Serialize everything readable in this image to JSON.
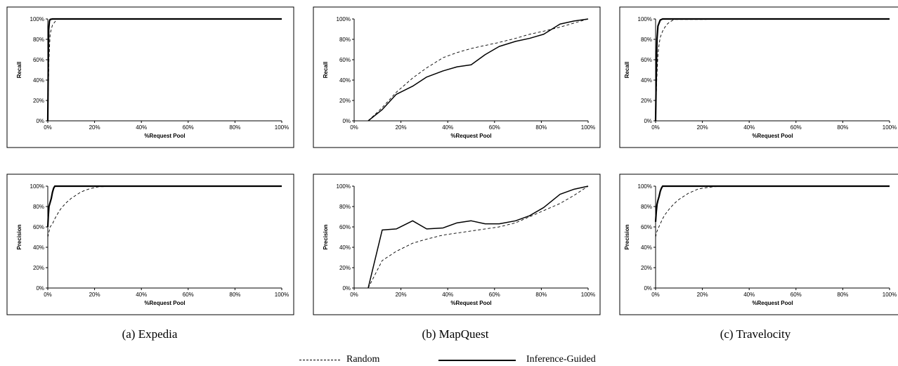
{
  "captions": [
    "(a) Expedia",
    "(b) MapQuest",
    "(c) Travelocity"
  ],
  "legend": {
    "random": "Random",
    "guided": "Inference-Guided"
  },
  "chart_data": [
    {
      "type": "line",
      "panel": "a-recall",
      "xlabel": "%Request Pool",
      "ylabel": "Recall",
      "xticks": [
        "0%",
        "20%",
        "40%",
        "60%",
        "80%",
        "100%"
      ],
      "yticks": [
        "0%",
        "20%",
        "40%",
        "60%",
        "80%",
        "100%"
      ],
      "xlim": [
        0,
        100
      ],
      "ylim": [
        0,
        100
      ],
      "series": [
        {
          "name": "Random",
          "style": "dashed",
          "x": [
            0,
            0.5,
            1,
            1.5,
            2,
            3,
            4
          ],
          "y": [
            0,
            60,
            85,
            90,
            94,
            97,
            100
          ]
        },
        {
          "name": "Inference-Guided",
          "style": "solid",
          "x": [
            0,
            0.2,
            0.4,
            0.7,
            1,
            2,
            40,
            100
          ],
          "y": [
            0,
            55,
            90,
            98,
            99.5,
            100,
            100,
            100
          ]
        }
      ]
    },
    {
      "type": "line",
      "panel": "b-recall",
      "xlabel": "%Request Pool",
      "ylabel": "Recall",
      "xticks": [
        "0%",
        "20%",
        "40%",
        "60%",
        "80%",
        "100%"
      ],
      "yticks": [
        "0%",
        "20%",
        "40%",
        "60%",
        "80%",
        "100%"
      ],
      "xlim": [
        0,
        100
      ],
      "ylim": [
        0,
        100
      ],
      "series": [
        {
          "name": "Random",
          "style": "dashed",
          "x": [
            6,
            12,
            18,
            25,
            31,
            38,
            44,
            50,
            56,
            62,
            69,
            75,
            81,
            88,
            94,
            100
          ],
          "y": [
            0,
            13,
            28,
            42,
            52,
            62,
            67,
            71,
            74,
            77,
            81,
            85,
            88,
            92,
            96,
            100
          ]
        },
        {
          "name": "Inference-Guided",
          "style": "solid",
          "x": [
            6,
            12,
            18,
            25,
            31,
            38,
            44,
            50,
            56,
            62,
            69,
            75,
            81,
            88,
            94,
            100
          ],
          "y": [
            0,
            11,
            26,
            34,
            43,
            49,
            53,
            55,
            65,
            73,
            78,
            81,
            85,
            95,
            98,
            100
          ]
        }
      ]
    },
    {
      "type": "line",
      "panel": "c-recall",
      "xlabel": "%Request Pool",
      "ylabel": "Recall",
      "xticks": [
        "0%",
        "20%",
        "40%",
        "60%",
        "80%",
        "100%"
      ],
      "yticks": [
        "0%",
        "20%",
        "40%",
        "60%",
        "80%",
        "100%"
      ],
      "xlim": [
        0,
        100
      ],
      "ylim": [
        0,
        100
      ],
      "series": [
        {
          "name": "Random",
          "style": "dashed",
          "x": [
            0,
            0.5,
            1,
            1.5,
            2,
            3,
            4,
            5,
            6,
            8,
            100
          ],
          "y": [
            0,
            40,
            65,
            75,
            82,
            88,
            92,
            95,
            97,
            99.5,
            100
          ]
        },
        {
          "name": "Inference-Guided",
          "style": "solid",
          "x": [
            0,
            0.3,
            0.6,
            1,
            2,
            3,
            100
          ],
          "y": [
            0,
            45,
            80,
            93,
            99,
            100,
            100
          ]
        }
      ]
    },
    {
      "type": "line",
      "panel": "a-precision",
      "xlabel": "%Request Pool",
      "ylabel": "Precision",
      "xticks": [
        "0%",
        "20%",
        "40%",
        "60%",
        "80%",
        "100%"
      ],
      "yticks": [
        "0%",
        "20%",
        "40%",
        "60%",
        "80%",
        "100%"
      ],
      "xlim": [
        0,
        100
      ],
      "ylim": [
        0,
        100
      ],
      "series": [
        {
          "name": "Random",
          "style": "dashed",
          "x": [
            0,
            0.5,
            1,
            2,
            3,
            4,
            5,
            6,
            8,
            10,
            12,
            14,
            16,
            18,
            20,
            22,
            40
          ],
          "y": [
            50,
            55,
            60,
            63,
            68,
            72,
            76,
            79,
            84,
            88,
            91,
            94,
            96,
            97.5,
            98.5,
            99.5,
            100
          ]
        },
        {
          "name": "Inference-Guided",
          "style": "solid",
          "x": [
            0,
            0.2,
            0.5,
            1,
            1.5,
            2,
            2.5,
            3,
            40,
            100
          ],
          "y": [
            60,
            70,
            80,
            84,
            88,
            94,
            98,
            100,
            100,
            100
          ]
        }
      ]
    },
    {
      "type": "line",
      "panel": "b-precision",
      "xlabel": "%Request Pool",
      "ylabel": "Precision",
      "xticks": [
        "0%",
        "20%",
        "40%",
        "60%",
        "80%",
        "100%"
      ],
      "yticks": [
        "0%",
        "20%",
        "40%",
        "60%",
        "80%",
        "100%"
      ],
      "xlim": [
        0,
        100
      ],
      "ylim": [
        0,
        100
      ],
      "series": [
        {
          "name": "Random",
          "style": "dashed",
          "x": [
            6,
            12,
            18,
            25,
            31,
            38,
            44,
            50,
            56,
            62,
            69,
            75,
            81,
            88,
            94,
            100
          ],
          "y": [
            0,
            27,
            36,
            44,
            48,
            52,
            54,
            56,
            58,
            60,
            64,
            70,
            76,
            83,
            91,
            100
          ]
        },
        {
          "name": "Inference-Guided",
          "style": "solid",
          "x": [
            6,
            12,
            18,
            25,
            31,
            38,
            44,
            50,
            56,
            62,
            69,
            75,
            81,
            88,
            94,
            100
          ],
          "y": [
            0,
            57,
            58,
            66,
            58,
            59,
            64,
            66,
            63,
            63,
            66,
            71,
            79,
            92,
            97,
            100
          ]
        }
      ]
    },
    {
      "type": "line",
      "panel": "c-precision",
      "xlabel": "%Request Pool",
      "ylabel": "Precision",
      "xticks": [
        "0%",
        "20%",
        "40%",
        "60%",
        "80%",
        "100%"
      ],
      "yticks": [
        "0%",
        "20%",
        "40%",
        "60%",
        "80%",
        "100%"
      ],
      "xlim": [
        0,
        100
      ],
      "ylim": [
        0,
        100
      ],
      "series": [
        {
          "name": "Random",
          "style": "dashed",
          "x": [
            0,
            0.5,
            1,
            2,
            3,
            4,
            6,
            8,
            10,
            12,
            14,
            16,
            18,
            20,
            25,
            30,
            100
          ],
          "y": [
            50,
            55,
            58,
            63,
            68,
            72,
            78,
            83,
            87,
            90,
            93,
            95,
            97,
            98,
            99.5,
            100,
            100
          ]
        },
        {
          "name": "Inference-Guided",
          "style": "solid",
          "x": [
            0,
            0.3,
            0.6,
            1,
            1.5,
            2,
            2.5,
            3,
            100
          ],
          "y": [
            65,
            75,
            82,
            86,
            90,
            95,
            98,
            100,
            100
          ]
        }
      ]
    }
  ]
}
